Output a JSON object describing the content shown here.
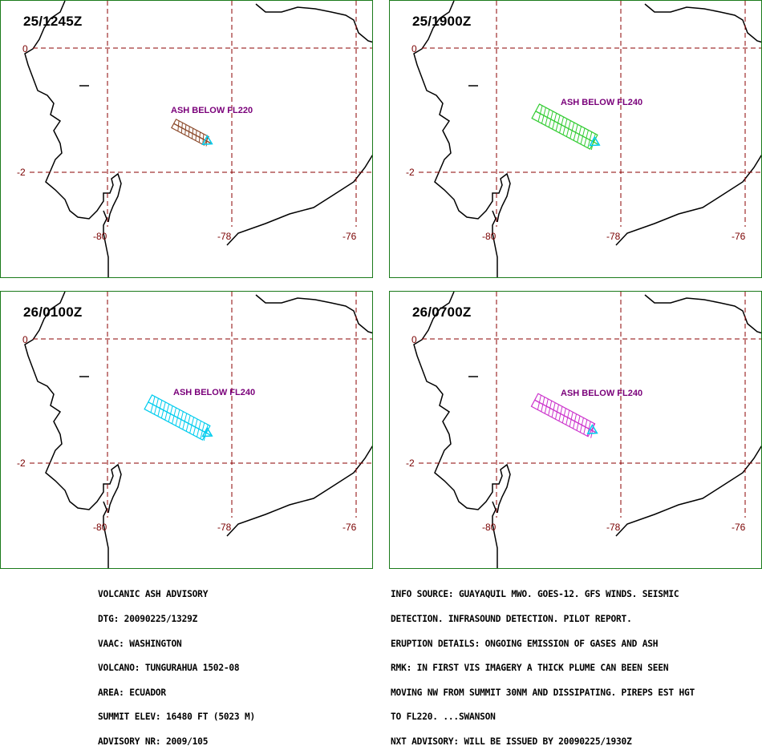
{
  "panels": [
    {
      "time": "25/1245Z",
      "ash_label": "ASH BELOW FL220",
      "color": "#8b4a2b",
      "lat_labels": [
        "0",
        "-2"
      ],
      "lon_labels": [
        "-80",
        "-78",
        "-76"
      ]
    },
    {
      "time": "25/1900Z",
      "ash_label": "ASH BELOW FL240",
      "color": "#33cc33",
      "lat_labels": [
        "0",
        "-2"
      ],
      "lon_labels": [
        "-80",
        "-78",
        "-76"
      ]
    },
    {
      "time": "26/0100Z",
      "ash_label": "ASH BELOW FL240",
      "color": "#00ccee",
      "lat_labels": [
        "0",
        "-2"
      ],
      "lon_labels": [
        "-80",
        "-78",
        "-76"
      ]
    },
    {
      "time": "26/0700Z",
      "ash_label": "ASH BELOW FL240",
      "color": "#cc33cc",
      "lat_labels": [
        "0",
        "-2"
      ],
      "lon_labels": [
        "-80",
        "-78",
        "-76"
      ]
    }
  ],
  "advisory_left": [
    "VOLCANIC ASH ADVISORY",
    "DTG: 20090225/1329Z",
    "VAAC: WASHINGTON",
    "VOLCANO: TUNGURAHUA 1502-08",
    "AREA: ECUADOR",
    "SUMMIT ELEV: 16480 FT (5023 M)",
    "ADVISORY NR: 2009/105"
  ],
  "advisory_right": [
    "INFO SOURCE: GUAYAQUIL MWO. GOES-12. GFS WINDS. SEISMIC",
    "DETECTION. INFRASOUND DETECTION. PILOT REPORT.",
    "ERUPTION DETAILS: ONGOING EMISSION OF GASES AND ASH",
    "RMK: IN FIRST VIS IMAGERY A THICK PLUME CAN BEEN SEEN",
    "MOVING NW FROM SUMMIT 30NM AND DISSIPATING. PIREPS EST HGT",
    "TO FL220. ...SWANSON",
    "NXT ADVISORY: WILL BE ISSUED BY 20090225/1930Z"
  ]
}
